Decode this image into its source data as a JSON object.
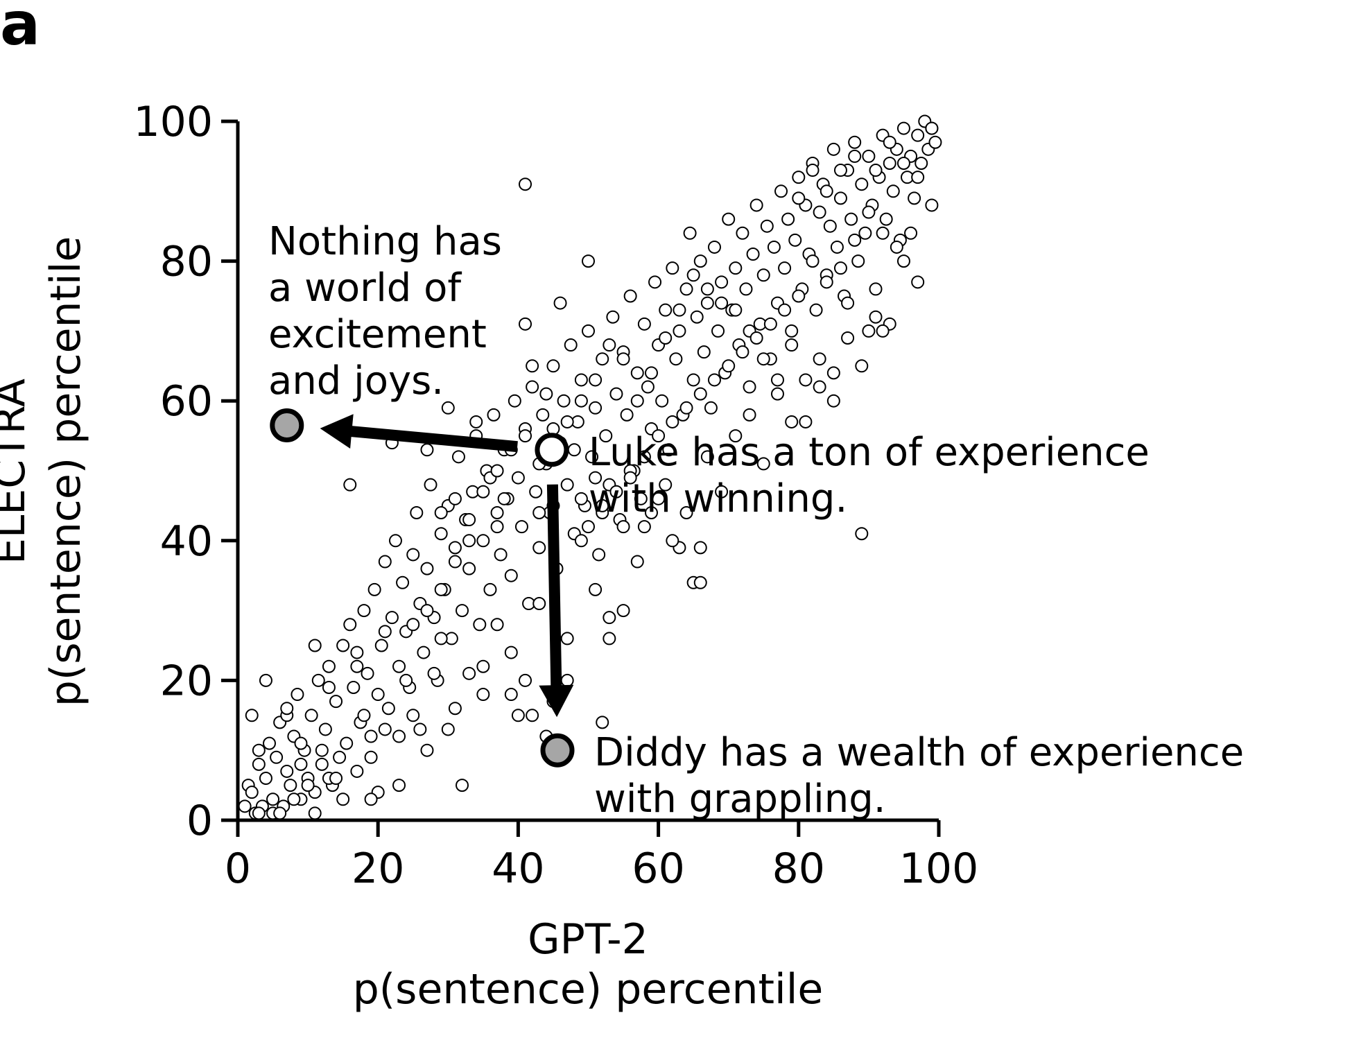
{
  "panel_label": "a",
  "chart_data": {
    "type": "scatter",
    "xlabel": [
      "GPT-2",
      "p(sentence) percentile"
    ],
    "ylabel": [
      "ELECTRA",
      "p(sentence) percentile"
    ],
    "xlim": [
      0,
      100
    ],
    "ylim": [
      0,
      100
    ],
    "xticks": [
      0,
      20,
      40,
      60,
      80,
      100
    ],
    "yticks": [
      0,
      20,
      40,
      60,
      80,
      100
    ],
    "grid": false,
    "marker_color": "#ffffff",
    "marker_edge": "#000000",
    "highlight_fill": "#a6a6a6",
    "background_points": [
      [
        1,
        2
      ],
      [
        1.5,
        5
      ],
      [
        2,
        4
      ],
      [
        2.5,
        1
      ],
      [
        3,
        8
      ],
      [
        3.5,
        2
      ],
      [
        4,
        6
      ],
      [
        4.5,
        11
      ],
      [
        5,
        3
      ],
      [
        5.5,
        9
      ],
      [
        6,
        14
      ],
      [
        6.5,
        2
      ],
      [
        7,
        7
      ],
      [
        7.5,
        5
      ],
      [
        8,
        12
      ],
      [
        8.5,
        18
      ],
      [
        9,
        3
      ],
      [
        9.5,
        10
      ],
      [
        10,
        6
      ],
      [
        10.5,
        15
      ],
      [
        11,
        4
      ],
      [
        11.5,
        20
      ],
      [
        12,
        8
      ],
      [
        12.5,
        13
      ],
      [
        13,
        22
      ],
      [
        13.5,
        5
      ],
      [
        14,
        17
      ],
      [
        14.5,
        9
      ],
      [
        15,
        25
      ],
      [
        15.5,
        11
      ],
      [
        16,
        28
      ],
      [
        16.5,
        19
      ],
      [
        17,
        7
      ],
      [
        17.5,
        14
      ],
      [
        18,
        30
      ],
      [
        18.5,
        21
      ],
      [
        19,
        12
      ],
      [
        19.5,
        33
      ],
      [
        20,
        18
      ],
      [
        20.5,
        25
      ],
      [
        21,
        37
      ],
      [
        21.5,
        16
      ],
      [
        22,
        29
      ],
      [
        22.5,
        40
      ],
      [
        23,
        22
      ],
      [
        23.5,
        34
      ],
      [
        24,
        27
      ],
      [
        24.5,
        19
      ],
      [
        25,
        38
      ],
      [
        25.5,
        44
      ],
      [
        26,
        31
      ],
      [
        26.5,
        24
      ],
      [
        27,
        36
      ],
      [
        27.5,
        48
      ],
      [
        28,
        29
      ],
      [
        28.5,
        20
      ],
      [
        29,
        41
      ],
      [
        29.5,
        33
      ],
      [
        30,
        45
      ],
      [
        30.5,
        26
      ],
      [
        31,
        39
      ],
      [
        31.5,
        52
      ],
      [
        32,
        30
      ],
      [
        32.5,
        43
      ],
      [
        33,
        36
      ],
      [
        33.5,
        47
      ],
      [
        34,
        55
      ],
      [
        34.5,
        28
      ],
      [
        35,
        40
      ],
      [
        35.5,
        50
      ],
      [
        36,
        33
      ],
      [
        36.5,
        58
      ],
      [
        37,
        44
      ],
      [
        37.5,
        38
      ],
      [
        38,
        53
      ],
      [
        38.5,
        46
      ],
      [
        39,
        35
      ],
      [
        39.5,
        60
      ],
      [
        40,
        49
      ],
      [
        40.5,
        42
      ],
      [
        41,
        56
      ],
      [
        41.5,
        31
      ],
      [
        42,
        62
      ],
      [
        42.5,
        47
      ],
      [
        43,
        39
      ],
      [
        43.5,
        58
      ],
      [
        44,
        51
      ],
      [
        44.5,
        44
      ],
      [
        45,
        65
      ],
      [
        45.5,
        36
      ],
      [
        46,
        54
      ],
      [
        46.5,
        60
      ],
      [
        47,
        48
      ],
      [
        47.5,
        68
      ],
      [
        48,
        41
      ],
      [
        48.5,
        57
      ],
      [
        49,
        63
      ],
      [
        49.5,
        45
      ],
      [
        50,
        70
      ],
      [
        50.5,
        52
      ],
      [
        51,
        59
      ],
      [
        51.5,
        38
      ],
      [
        52,
        66
      ],
      [
        52.5,
        55
      ],
      [
        53,
        48
      ],
      [
        53.5,
        72
      ],
      [
        54,
        61
      ],
      [
        54.5,
        43
      ],
      [
        55,
        67
      ],
      [
        55.5,
        58
      ],
      [
        56,
        75
      ],
      [
        56.5,
        50
      ],
      [
        57,
        64
      ],
      [
        57.5,
        46
      ],
      [
        58,
        71
      ],
      [
        58.5,
        62
      ],
      [
        59,
        56
      ],
      [
        59.5,
        77
      ],
      [
        60,
        68
      ],
      [
        60.5,
        60
      ],
      [
        61,
        73
      ],
      [
        61.5,
        53
      ],
      [
        62,
        79
      ],
      [
        62.5,
        66
      ],
      [
        63,
        70
      ],
      [
        63.5,
        58
      ],
      [
        64,
        76
      ],
      [
        64.5,
        84
      ],
      [
        65,
        63
      ],
      [
        65.5,
        72
      ],
      [
        66,
        80
      ],
      [
        66.5,
        67
      ],
      [
        67,
        74
      ],
      [
        67.5,
        59
      ],
      [
        68,
        82
      ],
      [
        68.5,
        70
      ],
      [
        69,
        77
      ],
      [
        69.5,
        64
      ],
      [
        70,
        86
      ],
      [
        70.5,
        73
      ],
      [
        71,
        79
      ],
      [
        71.5,
        68
      ],
      [
        72,
        84
      ],
      [
        72.5,
        76
      ],
      [
        73,
        62
      ],
      [
        73.5,
        81
      ],
      [
        74,
        88
      ],
      [
        74.5,
        71
      ],
      [
        75,
        78
      ],
      [
        75.5,
        85
      ],
      [
        76,
        66
      ],
      [
        76.5,
        82
      ],
      [
        77,
        74
      ],
      [
        77.5,
        90
      ],
      [
        78,
        79
      ],
      [
        78.5,
        86
      ],
      [
        79,
        70
      ],
      [
        79.5,
        83
      ],
      [
        80,
        92
      ],
      [
        80.5,
        76
      ],
      [
        81,
        88
      ],
      [
        81.5,
        81
      ],
      [
        82,
        94
      ],
      [
        82.5,
        73
      ],
      [
        83,
        87
      ],
      [
        83.5,
        91
      ],
      [
        84,
        78
      ],
      [
        84.5,
        85
      ],
      [
        85,
        96
      ],
      [
        85.5,
        82
      ],
      [
        86,
        89
      ],
      [
        86.5,
        75
      ],
      [
        87,
        93
      ],
      [
        87.5,
        86
      ],
      [
        88,
        97
      ],
      [
        88.5,
        80
      ],
      [
        89,
        91
      ],
      [
        89.5,
        84
      ],
      [
        90,
        95
      ],
      [
        90.5,
        88
      ],
      [
        91,
        72
      ],
      [
        91.5,
        92
      ],
      [
        92,
        98
      ],
      [
        92.5,
        86
      ],
      [
        93,
        94
      ],
      [
        93.5,
        90
      ],
      [
        94,
        96
      ],
      [
        94.5,
        83
      ],
      [
        95,
        99
      ],
      [
        95.5,
        92
      ],
      [
        96,
        95
      ],
      [
        96.5,
        89
      ],
      [
        97,
        98
      ],
      [
        97.5,
        94
      ],
      [
        98,
        100
      ],
      [
        98.5,
        96
      ],
      [
        99,
        99
      ],
      [
        99.5,
        97
      ],
      [
        3,
        10
      ],
      [
        5,
        1
      ],
      [
        7,
        15
      ],
      [
        9,
        8
      ],
      [
        11,
        1
      ],
      [
        13,
        6
      ],
      [
        15,
        3
      ],
      [
        17,
        24
      ],
      [
        19,
        9
      ],
      [
        21,
        13
      ],
      [
        23,
        5
      ],
      [
        25,
        15
      ],
      [
        27,
        10
      ],
      [
        29,
        26
      ],
      [
        31,
        16
      ],
      [
        33,
        21
      ],
      [
        35,
        18
      ],
      [
        37,
        28
      ],
      [
        39,
        24
      ],
      [
        41,
        20
      ],
      [
        43,
        31
      ],
      [
        45,
        17
      ],
      [
        47,
        26
      ],
      [
        49,
        40
      ],
      [
        51,
        33
      ],
      [
        53,
        29
      ],
      [
        55,
        42
      ],
      [
        57,
        37
      ],
      [
        59,
        44
      ],
      [
        61,
        48
      ],
      [
        63,
        39
      ],
      [
        65,
        34
      ],
      [
        67,
        52
      ],
      [
        69,
        47
      ],
      [
        71,
        55
      ],
      [
        73,
        58
      ],
      [
        75,
        51
      ],
      [
        77,
        61
      ],
      [
        79,
        57
      ],
      [
        81,
        63
      ],
      [
        83,
        66
      ],
      [
        85,
        60
      ],
      [
        87,
        69
      ],
      [
        89,
        65
      ],
      [
        91,
        76
      ],
      [
        93,
        71
      ],
      [
        95,
        80
      ],
      [
        97,
        77
      ],
      [
        99,
        88
      ],
      [
        16,
        48
      ],
      [
        22,
        54
      ],
      [
        27,
        53
      ],
      [
        36,
        49
      ],
      [
        41,
        91
      ],
      [
        41,
        71
      ],
      [
        42,
        65
      ],
      [
        38,
        46
      ],
      [
        34,
        57
      ],
      [
        30,
        59
      ],
      [
        48,
        53
      ],
      [
        50,
        80
      ],
      [
        44,
        61
      ],
      [
        46,
        74
      ],
      [
        52,
        44
      ],
      [
        56,
        50
      ],
      [
        58,
        42
      ],
      [
        60,
        46
      ],
      [
        62,
        40
      ],
      [
        64,
        44
      ],
      [
        66,
        39
      ],
      [
        66,
        34
      ],
      [
        55,
        30
      ],
      [
        53,
        26
      ],
      [
        47,
        20
      ],
      [
        52,
        14
      ],
      [
        40,
        15
      ],
      [
        42,
        15
      ],
      [
        39,
        18
      ],
      [
        44,
        12
      ],
      [
        46,
        18
      ],
      [
        32,
        5
      ],
      [
        20,
        4
      ],
      [
        14,
        6
      ],
      [
        19,
        3
      ],
      [
        8,
        3
      ],
      [
        3,
        1
      ],
      [
        6,
        1
      ],
      [
        35,
        22
      ],
      [
        30,
        13
      ],
      [
        26,
        13
      ],
      [
        23,
        12
      ],
      [
        18,
        15
      ],
      [
        12,
        10
      ],
      [
        10,
        5
      ],
      [
        24,
        20
      ],
      [
        28,
        21
      ],
      [
        45,
        45
      ],
      [
        49,
        46
      ],
      [
        51,
        49
      ],
      [
        43,
        44
      ],
      [
        37,
        42
      ],
      [
        33,
        40
      ],
      [
        31,
        37
      ],
      [
        29,
        33
      ],
      [
        27,
        30
      ],
      [
        25,
        28
      ],
      [
        21,
        27
      ],
      [
        17,
        22
      ],
      [
        13,
        19
      ],
      [
        11,
        25
      ],
      [
        9,
        11
      ],
      [
        7,
        16
      ],
      [
        4,
        20
      ],
      [
        2,
        15
      ],
      [
        89,
        41
      ],
      [
        87,
        74
      ],
      [
        90,
        70
      ],
      [
        92,
        70
      ],
      [
        85,
        64
      ],
      [
        83,
        62
      ],
      [
        81,
        57
      ],
      [
        79,
        68
      ],
      [
        77,
        63
      ],
      [
        75,
        66
      ],
      [
        73,
        70
      ],
      [
        71,
        73
      ],
      [
        69,
        74
      ],
      [
        67,
        76
      ],
      [
        65,
        78
      ],
      [
        63,
        73
      ],
      [
        61,
        69
      ],
      [
        59,
        64
      ],
      [
        57,
        60
      ],
      [
        55,
        66
      ],
      [
        53,
        68
      ],
      [
        51,
        63
      ],
      [
        49,
        60
      ],
      [
        47,
        57
      ],
      [
        45,
        56
      ],
      [
        43,
        51
      ],
      [
        41,
        55
      ],
      [
        39,
        53
      ],
      [
        37,
        50
      ],
      [
        35,
        47
      ],
      [
        33,
        43
      ],
      [
        31,
        46
      ],
      [
        29,
        44
      ],
      [
        80,
        89
      ],
      [
        82,
        93
      ],
      [
        84,
        90
      ],
      [
        86,
        93
      ],
      [
        88,
        95
      ],
      [
        91,
        93
      ],
      [
        93,
        97
      ],
      [
        95,
        94
      ],
      [
        97,
        92
      ],
      [
        99,
        99
      ],
      [
        96,
        84
      ],
      [
        94,
        82
      ],
      [
        92,
        84
      ],
      [
        90,
        87
      ],
      [
        88,
        83
      ],
      [
        86,
        79
      ],
      [
        84,
        77
      ],
      [
        82,
        80
      ],
      [
        80,
        75
      ],
      [
        78,
        73
      ],
      [
        76,
        71
      ],
      [
        74,
        69
      ],
      [
        72,
        67
      ],
      [
        70,
        65
      ],
      [
        68,
        63
      ],
      [
        66,
        61
      ],
      [
        64,
        59
      ],
      [
        62,
        57
      ],
      [
        60,
        55
      ],
      [
        58,
        52
      ],
      [
        56,
        49
      ],
      [
        54,
        47
      ],
      [
        52,
        45
      ],
      [
        50,
        42
      ]
    ],
    "highlight_points": [
      {
        "x": 44.8,
        "y": 53,
        "fill": "#ffffff",
        "label": [
          "Luke has a ton of experience",
          "with winning."
        ]
      },
      {
        "x": 7,
        "y": 56.5,
        "fill": "#a6a6a6",
        "label": [
          "Nothing has",
          "a world of",
          "excitement",
          "and joys."
        ]
      },
      {
        "x": 45.6,
        "y": 10,
        "fill": "#a6a6a6",
        "label": [
          "Diddy has a wealth of experience",
          "with grappling."
        ]
      }
    ],
    "arrows": [
      {
        "from": "Luke has a ton of experience",
        "to": "Nothing has"
      },
      {
        "from": "Luke has a ton of experience",
        "to": "Diddy has a wealth of experience"
      }
    ]
  }
}
